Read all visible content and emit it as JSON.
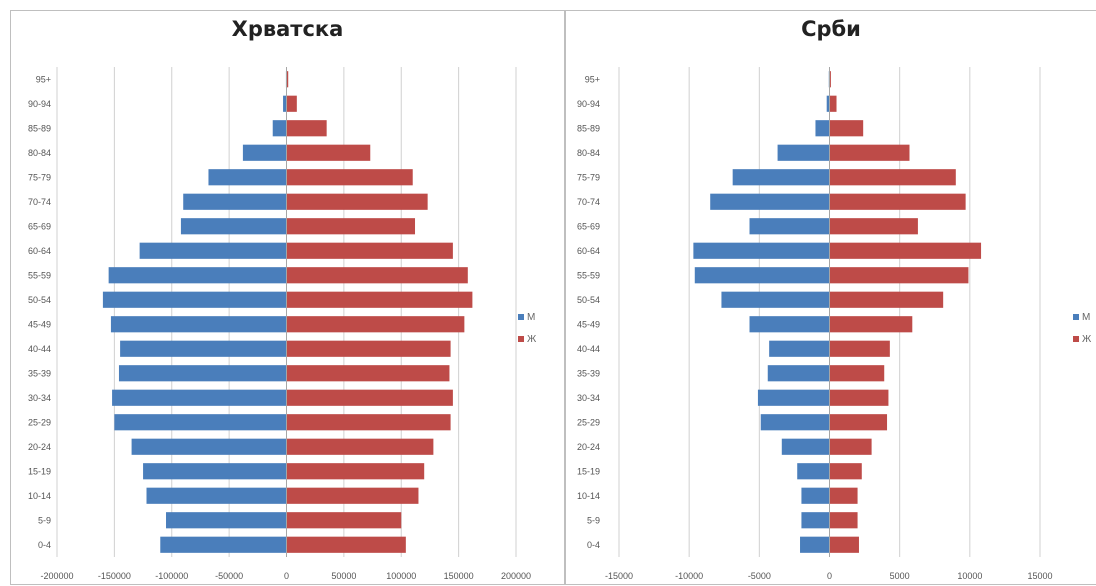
{
  "chart_data": [
    {
      "type": "bar",
      "orientation": "horizontal",
      "title": "Хрватска",
      "categories": [
        "0-4",
        "5-9",
        "10-14",
        "15-19",
        "20-24",
        "25-29",
        "30-34",
        "35-39",
        "40-44",
        "45-49",
        "50-54",
        "55-59",
        "60-64",
        "65-69",
        "70-74",
        "75-79",
        "80-84",
        "85-89",
        "90-94",
        "95+"
      ],
      "series": [
        {
          "name": "М",
          "color": "#4a7ebb",
          "values": [
            -110000,
            -105000,
            -122000,
            -125000,
            -135000,
            -150000,
            -152000,
            -146000,
            -145000,
            -153000,
            -160000,
            -155000,
            -128000,
            -92000,
            -90000,
            -68000,
            -38000,
            -12000,
            -3000,
            -500
          ]
        },
        {
          "name": "Ж",
          "color": "#be4b48",
          "values": [
            104000,
            100000,
            115000,
            120000,
            128000,
            143000,
            145000,
            142000,
            143000,
            155000,
            162000,
            158000,
            145000,
            112000,
            123000,
            110000,
            73000,
            35000,
            9000,
            1500
          ]
        }
      ],
      "xlim": [
        -200000,
        200000
      ],
      "xticks": [
        "-200000",
        "-150000",
        "-100000",
        "-50000",
        "0",
        "50000",
        "100000",
        "150000",
        "200000"
      ],
      "legend": "right"
    },
    {
      "type": "bar",
      "orientation": "horizontal",
      "title": "Срби",
      "categories": [
        "0-4",
        "5-9",
        "10-14",
        "15-19",
        "20-24",
        "25-29",
        "30-34",
        "35-39",
        "40-44",
        "45-49",
        "50-54",
        "55-59",
        "60-64",
        "65-69",
        "70-74",
        "75-79",
        "80-84",
        "85-89",
        "90-94",
        "95+"
      ],
      "series": [
        {
          "name": "М",
          "color": "#4a7ebb",
          "values": [
            -2100,
            -2000,
            -2000,
            -2300,
            -3400,
            -4900,
            -5100,
            -4400,
            -4300,
            -5700,
            -7700,
            -9600,
            -9700,
            -5700,
            -8500,
            -6900,
            -3700,
            -1000,
            -200,
            -50
          ]
        },
        {
          "name": "Ж",
          "color": "#be4b48",
          "values": [
            2100,
            2000,
            2000,
            2300,
            3000,
            4100,
            4200,
            3900,
            4300,
            5900,
            8100,
            9900,
            10800,
            6300,
            9700,
            9000,
            5700,
            2400,
            500,
            100
          ]
        }
      ],
      "xlim": [
        -15000,
        15000
      ],
      "xticks": [
        "-15000",
        "-10000",
        "-5000",
        "0",
        "5000",
        "10000",
        "15000"
      ],
      "legend": "right"
    }
  ]
}
